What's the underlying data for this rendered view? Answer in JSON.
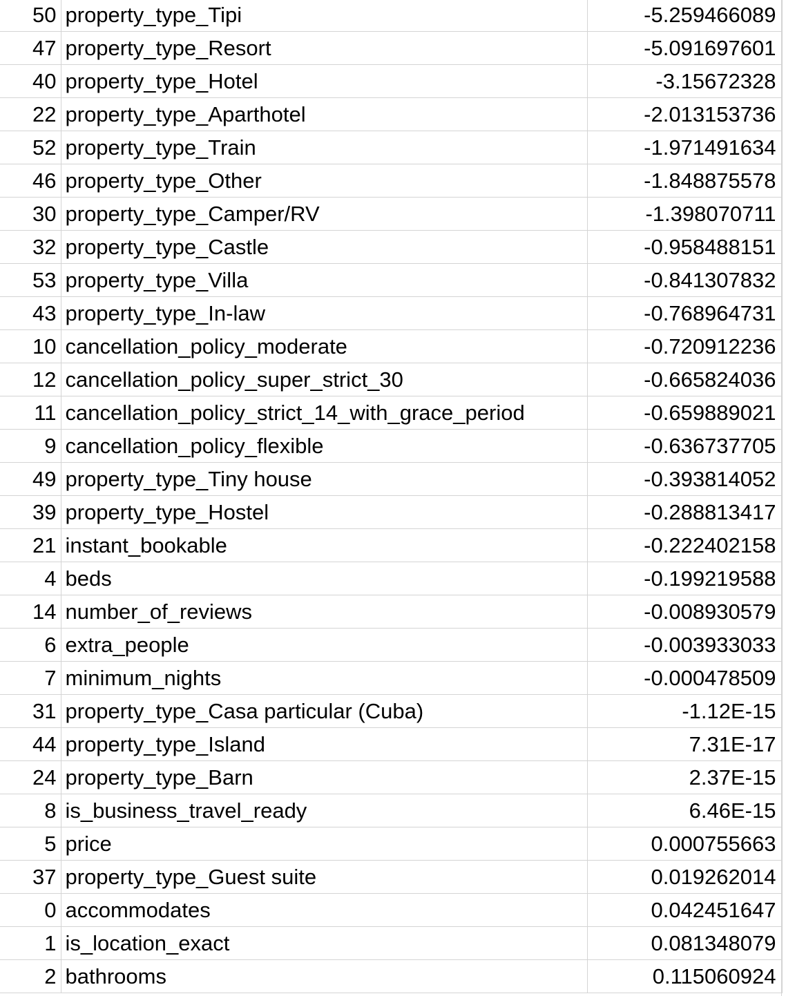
{
  "sheet": {
    "rows": [
      {
        "index": "50",
        "feature": "property_type_Tipi",
        "value": "-5.259466089"
      },
      {
        "index": "47",
        "feature": "property_type_Resort",
        "value": "-5.091697601"
      },
      {
        "index": "40",
        "feature": "property_type_Hotel",
        "value": "-3.15672328"
      },
      {
        "index": "22",
        "feature": "property_type_Aparthotel",
        "value": "-2.013153736"
      },
      {
        "index": "52",
        "feature": "property_type_Train",
        "value": "-1.971491634"
      },
      {
        "index": "46",
        "feature": "property_type_Other",
        "value": "-1.848875578"
      },
      {
        "index": "30",
        "feature": "property_type_Camper/RV",
        "value": "-1.398070711"
      },
      {
        "index": "32",
        "feature": "property_type_Castle",
        "value": "-0.958488151"
      },
      {
        "index": "53",
        "feature": "property_type_Villa",
        "value": "-0.841307832"
      },
      {
        "index": "43",
        "feature": "property_type_In-law",
        "value": "-0.768964731"
      },
      {
        "index": "10",
        "feature": "cancellation_policy_moderate",
        "value": "-0.720912236"
      },
      {
        "index": "12",
        "feature": "cancellation_policy_super_strict_30",
        "value": "-0.665824036"
      },
      {
        "index": "11",
        "feature": "cancellation_policy_strict_14_with_grace_period",
        "value": "-0.659889021"
      },
      {
        "index": "9",
        "feature": "cancellation_policy_flexible",
        "value": "-0.636737705"
      },
      {
        "index": "49",
        "feature": "property_type_Tiny house",
        "value": "-0.393814052"
      },
      {
        "index": "39",
        "feature": "property_type_Hostel",
        "value": "-0.288813417"
      },
      {
        "index": "21",
        "feature": "instant_bookable",
        "value": "-0.222402158"
      },
      {
        "index": "4",
        "feature": "beds",
        "value": "-0.199219588"
      },
      {
        "index": "14",
        "feature": "number_of_reviews",
        "value": "-0.008930579"
      },
      {
        "index": "6",
        "feature": "extra_people",
        "value": "-0.003933033"
      },
      {
        "index": "7",
        "feature": "minimum_nights",
        "value": "-0.000478509"
      },
      {
        "index": "31",
        "feature": "property_type_Casa particular (Cuba)",
        "value": "-1.12E-15"
      },
      {
        "index": "44",
        "feature": "property_type_Island",
        "value": "7.31E-17"
      },
      {
        "index": "24",
        "feature": "property_type_Barn",
        "value": "2.37E-15"
      },
      {
        "index": "8",
        "feature": "is_business_travel_ready",
        "value": "6.46E-15"
      },
      {
        "index": "5",
        "feature": "price",
        "value": "0.000755663"
      },
      {
        "index": "37",
        "feature": "property_type_Guest suite",
        "value": "0.019262014"
      },
      {
        "index": "0",
        "feature": "accommodates",
        "value": "0.042451647"
      },
      {
        "index": "1",
        "feature": "is_location_exact",
        "value": "0.081348079"
      },
      {
        "index": "2",
        "feature": "bathrooms",
        "value": "0.115060924"
      }
    ]
  }
}
